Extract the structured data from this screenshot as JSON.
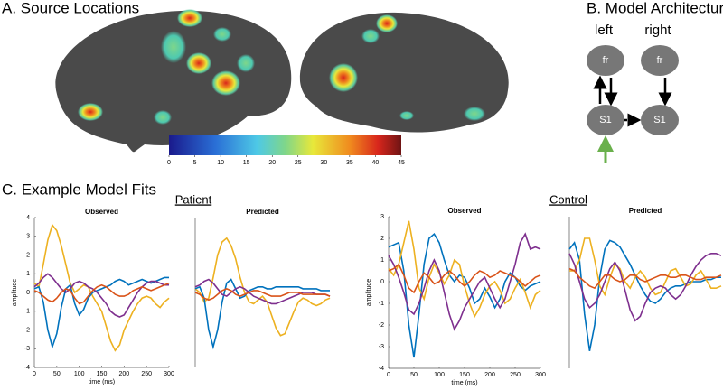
{
  "figure": {
    "source_locations": {
      "title": "A. Source Locations"
    },
    "model_architecture": {
      "title": "B. Model Architecture",
      "columns": [
        "left",
        "right"
      ],
      "nodes": [
        "fr",
        "fr",
        "S1",
        "S1"
      ]
    },
    "model_fits": {
      "title": "C. Example Model Fits",
      "groups": [
        "Patient",
        "Control"
      ]
    }
  },
  "chart_data": [
    {
      "type": "colorbar",
      "xlim": [
        0,
        45
      ],
      "xticks": [
        0,
        5,
        10,
        15,
        20,
        25,
        30,
        35,
        40,
        45
      ]
    },
    {
      "type": "line",
      "title": "Observed",
      "xlabel": "time (ms)",
      "ylabel": "amplitude",
      "x": [
        0,
        10,
        20,
        30,
        40,
        50,
        60,
        70,
        80,
        90,
        100,
        110,
        120,
        130,
        140,
        150,
        160,
        170,
        180,
        190,
        200,
        210,
        220,
        230,
        240,
        250,
        260,
        270,
        280,
        290,
        300
      ],
      "xlim": [
        0,
        300
      ],
      "xticks": [
        0,
        50,
        100,
        150,
        200,
        250,
        300
      ],
      "ylim": [
        -4,
        4
      ],
      "yticks": [
        -4,
        -3,
        -2,
        -1,
        0,
        1,
        2,
        3,
        4
      ],
      "series": [
        {
          "color": "#EDB120",
          "values": [
            0.5,
            0.3,
            1.5,
            2.8,
            3.6,
            3.3,
            2.5,
            1.5,
            0.5,
            0.0,
            0.2,
            0.4,
            0.3,
            -0.2,
            -0.6,
            -1.0,
            -1.8,
            -2.6,
            -3.1,
            -2.8,
            -2.0,
            -1.5,
            -1.0,
            -0.6,
            -0.3,
            -0.2,
            -0.3,
            -0.6,
            -0.8,
            -0.5,
            -0.3
          ]
        },
        {
          "color": "#0072BD",
          "values": [
            0.2,
            0.3,
            -0.5,
            -2.0,
            -2.9,
            -2.2,
            -0.8,
            0.2,
            0.4,
            -0.6,
            -1.2,
            -0.9,
            -0.3,
            0.0,
            0.1,
            0.2,
            0.3,
            0.4,
            0.6,
            0.7,
            0.6,
            0.4,
            0.5,
            0.6,
            0.7,
            0.6,
            0.5,
            0.6,
            0.7,
            0.8,
            0.8
          ]
        },
        {
          "color": "#7E2F8E",
          "values": [
            0.3,
            0.5,
            0.8,
            1.0,
            0.8,
            0.5,
            0.2,
            0.0,
            0.2,
            0.5,
            0.6,
            0.5,
            0.3,
            0.2,
            0.0,
            -0.3,
            -0.6,
            -1.0,
            -1.2,
            -1.3,
            -1.2,
            -0.8,
            -0.4,
            0.0,
            0.3,
            0.5,
            0.6,
            0.6,
            0.5,
            0.4,
            0.4
          ]
        },
        {
          "color": "#D95319",
          "values": [
            0.1,
            0.0,
            -0.2,
            -0.4,
            -0.5,
            -0.3,
            0.0,
            0.2,
            0.1,
            -0.3,
            -0.6,
            -0.5,
            -0.2,
            0.1,
            0.3,
            0.4,
            0.3,
            0.1,
            -0.1,
            -0.2,
            -0.2,
            -0.1,
            0.1,
            0.2,
            0.3,
            0.2,
            0.1,
            0.2,
            0.3,
            0.4,
            0.5
          ]
        }
      ]
    },
    {
      "type": "line",
      "title": "Predicted",
      "x": [
        0,
        10,
        20,
        30,
        40,
        50,
        60,
        70,
        80,
        90,
        100,
        110,
        120,
        130,
        140,
        150,
        160,
        170,
        180,
        190,
        200,
        210,
        220,
        230,
        240,
        250,
        260,
        270,
        280,
        290,
        300
      ],
      "xlim": [
        0,
        300
      ],
      "ylim": [
        -4,
        4
      ],
      "series": [
        {
          "color": "#EDB120",
          "values": [
            0.2,
            0.0,
            -0.5,
            -0.3,
            0.8,
            2.0,
            2.7,
            2.9,
            2.5,
            1.8,
            0.8,
            0.0,
            -0.5,
            -0.6,
            -0.4,
            -0.2,
            -0.5,
            -1.2,
            -1.9,
            -2.3,
            -2.2,
            -1.6,
            -1.0,
            -0.5,
            -0.3,
            -0.4,
            -0.6,
            -0.7,
            -0.6,
            -0.4,
            -0.3
          ]
        },
        {
          "color": "#0072BD",
          "values": [
            0.2,
            0.3,
            -0.3,
            -2.0,
            -2.9,
            -2.0,
            -0.5,
            0.5,
            0.7,
            0.2,
            -0.3,
            -0.2,
            0.1,
            0.2,
            0.3,
            0.3,
            0.2,
            0.2,
            0.3,
            0.3,
            0.3,
            0.3,
            0.3,
            0.3,
            0.2,
            0.2,
            0.2,
            0.2,
            0.1,
            0.1,
            0.1
          ]
        },
        {
          "color": "#7E2F8E",
          "values": [
            0.3,
            0.4,
            0.6,
            0.7,
            0.5,
            0.2,
            -0.1,
            -0.2,
            0.0,
            0.2,
            0.3,
            0.2,
            0.0,
            -0.2,
            -0.3,
            -0.4,
            -0.5,
            -0.6,
            -0.6,
            -0.5,
            -0.4,
            -0.3,
            -0.2,
            -0.1,
            0.0,
            0.0,
            0.0,
            -0.1,
            -0.1,
            -0.1,
            -0.2
          ]
        },
        {
          "color": "#D95319",
          "values": [
            0.0,
            -0.1,
            -0.3,
            -0.4,
            -0.3,
            -0.1,
            0.1,
            0.2,
            0.1,
            -0.1,
            -0.2,
            -0.1,
            0.0,
            0.1,
            0.1,
            0.0,
            -0.1,
            -0.2,
            -0.2,
            -0.2,
            -0.1,
            0.0,
            0.0,
            0.0,
            -0.1,
            -0.1,
            -0.1,
            -0.1,
            -0.1,
            -0.1,
            -0.2
          ]
        }
      ]
    },
    {
      "type": "line",
      "title": "Observed",
      "xlabel": "time (ms)",
      "ylabel": "amplitude",
      "x": [
        0,
        10,
        20,
        30,
        40,
        50,
        60,
        70,
        80,
        90,
        100,
        110,
        120,
        130,
        140,
        150,
        160,
        170,
        180,
        190,
        200,
        210,
        220,
        230,
        240,
        250,
        260,
        270,
        280,
        290,
        300
      ],
      "xlim": [
        0,
        300
      ],
      "xticks": [
        0,
        50,
        100,
        150,
        200,
        250,
        300
      ],
      "ylim": [
        -4,
        3
      ],
      "yticks": [
        -4,
        -3,
        -2,
        -1,
        0,
        1,
        2,
        3
      ],
      "series": [
        {
          "color": "#0072BD",
          "values": [
            1.6,
            1.7,
            1.8,
            0.5,
            -2.0,
            -3.5,
            -1.5,
            0.8,
            2.0,
            2.2,
            1.8,
            1.0,
            0.3,
            0.0,
            0.3,
            0.2,
            -0.3,
            -1.0,
            -0.8,
            -0.3,
            -0.7,
            -1.2,
            -0.8,
            0.0,
            0.4,
            0.2,
            -0.2,
            -0.4,
            -0.2,
            -0.1,
            0.0
          ]
        },
        {
          "color": "#EDB120",
          "values": [
            0.6,
            0.3,
            0.8,
            1.8,
            2.8,
            1.5,
            -0.3,
            -0.8,
            0.2,
            0.8,
            0.4,
            -0.1,
            0.3,
            1.0,
            0.8,
            -0.2,
            -1.0,
            -1.6,
            -1.2,
            -0.6,
            -0.2,
            0.0,
            -0.4,
            -1.0,
            -0.8,
            -0.3,
            0.1,
            -0.5,
            -1.2,
            -0.6,
            -0.4
          ]
        },
        {
          "color": "#7E2F8E",
          "values": [
            1.2,
            0.8,
            0.2,
            -0.5,
            -1.3,
            -1.5,
            -1.0,
            -0.3,
            0.5,
            1.0,
            0.5,
            -0.5,
            -1.5,
            -2.2,
            -1.8,
            -1.2,
            -0.8,
            -0.4,
            0.0,
            0.2,
            -0.3,
            -0.8,
            -1.2,
            -0.8,
            0.0,
            0.8,
            1.8,
            2.2,
            1.5,
            1.6,
            1.5
          ]
        },
        {
          "color": "#D95319",
          "values": [
            0.5,
            0.6,
            0.8,
            0.3,
            -0.3,
            -0.5,
            0.0,
            0.4,
            0.2,
            -0.1,
            0.0,
            0.3,
            0.5,
            0.3,
            0.0,
            -0.2,
            0.0,
            0.3,
            0.5,
            0.4,
            0.2,
            0.3,
            0.5,
            0.4,
            0.3,
            0.2,
            0.0,
            -0.2,
            0.0,
            0.2,
            0.3
          ]
        }
      ]
    },
    {
      "type": "line",
      "title": "Predicted",
      "x": [
        0,
        10,
        20,
        30,
        40,
        50,
        60,
        70,
        80,
        90,
        100,
        110,
        120,
        130,
        140,
        150,
        160,
        170,
        180,
        190,
        200,
        210,
        220,
        230,
        240,
        250,
        260,
        270,
        280,
        290,
        300
      ],
      "xlim": [
        0,
        300
      ],
      "ylim": [
        -4,
        3
      ],
      "series": [
        {
          "color": "#0072BD",
          "values": [
            1.5,
            1.8,
            1.0,
            -1.5,
            -3.2,
            -2.0,
            0.2,
            1.5,
            1.9,
            1.8,
            1.6,
            1.2,
            0.8,
            0.3,
            -0.2,
            -0.6,
            -0.9,
            -1.0,
            -0.8,
            -0.5,
            -0.3,
            -0.2,
            -0.2,
            -0.1,
            0.0,
            0.0,
            0.0,
            0.1,
            0.1,
            0.2,
            0.2
          ]
        },
        {
          "color": "#EDB120",
          "values": [
            0.5,
            0.5,
            1.0,
            2.0,
            2.0,
            1.0,
            -0.2,
            -0.6,
            0.2,
            0.8,
            0.6,
            0.0,
            -0.3,
            0.2,
            0.5,
            0.2,
            -0.3,
            -0.6,
            -0.5,
            0.0,
            0.5,
            0.6,
            0.2,
            -0.2,
            -0.1,
            0.3,
            0.5,
            0.1,
            -0.3,
            -0.3,
            -0.2
          ]
        },
        {
          "color": "#7E2F8E",
          "values": [
            1.3,
            0.8,
            0.0,
            -0.8,
            -1.2,
            -1.0,
            -0.6,
            0.0,
            0.6,
            0.9,
            0.5,
            -0.4,
            -1.3,
            -1.8,
            -1.6,
            -1.0,
            -0.5,
            -0.3,
            -0.2,
            -0.3,
            -0.6,
            -0.8,
            -0.6,
            -0.2,
            0.3,
            0.7,
            1.0,
            1.2,
            1.3,
            1.3,
            1.2
          ]
        },
        {
          "color": "#D95319",
          "values": [
            0.6,
            0.5,
            0.2,
            0.0,
            -0.2,
            -0.3,
            0.0,
            0.3,
            0.3,
            0.1,
            0.0,
            0.1,
            0.3,
            0.3,
            0.1,
            0.0,
            0.1,
            0.2,
            0.3,
            0.3,
            0.2,
            0.2,
            0.3,
            0.3,
            0.2,
            0.1,
            0.1,
            0.2,
            0.2,
            0.2,
            0.3
          ]
        }
      ]
    }
  ]
}
